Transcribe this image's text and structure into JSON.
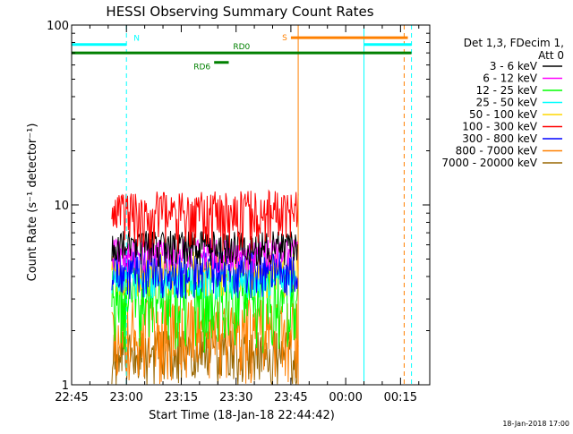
{
  "chart_data": {
    "type": "line",
    "title": "HESSI Observing Summary Count Rates",
    "xlabel": "Start Time (18-Jan-18 22:44:42)",
    "ylabel": "Count Rate (s⁻¹ detector⁻¹)",
    "y_scale": "log",
    "ylim": [
      1,
      100
    ],
    "xlim": [
      "22:45",
      "00:23"
    ],
    "x_ticks": [
      "22:45",
      "23:00",
      "23:15",
      "23:30",
      "23:45",
      "00:00",
      "00:15"
    ],
    "y_ticks": [
      "1",
      "10",
      "100"
    ],
    "footer": "18-Jan-2018 17:00",
    "legend": {
      "header_lines": [
        "Det 1,3, FDecim 1,",
        "Att 0"
      ],
      "placement": "right"
    },
    "flags": [
      {
        "label": "N",
        "color": "#00ffff",
        "y": 78,
        "x_start": "22:45",
        "x_end": "23:00"
      },
      {
        "label": "",
        "color": "#00ffff",
        "y": 78,
        "x_start": "00:05",
        "x_end": "00:18"
      },
      {
        "label": "S",
        "color": "#ff8000",
        "y": 85,
        "x_start": "23:45",
        "x_end": "00:17"
      },
      {
        "label": "RD0",
        "color": "#008000",
        "y": 70,
        "x_start": "22:45",
        "x_end": "00:18"
      },
      {
        "label": "RD6",
        "color": "#008000",
        "y": 62,
        "x_start": "23:24",
        "x_end": "23:28"
      }
    ],
    "vertical_lines": [
      {
        "x": "22:45",
        "color": "#00ffff",
        "style": "solid"
      },
      {
        "x": "23:00",
        "color": "#00ffff",
        "style": "dashed"
      },
      {
        "x": "23:47",
        "color": "#ff8000",
        "style": "solid"
      },
      {
        "x": "00:05",
        "color": "#00ffff",
        "style": "solid"
      },
      {
        "x": "00:16",
        "color": "#ff8000",
        "style": "dashed"
      },
      {
        "x": "00:18",
        "color": "#00ffff",
        "style": "dashed"
      }
    ],
    "data_window": {
      "start": "22:56",
      "end": "23:47"
    },
    "series": [
      {
        "name": "3 - 6 keV",
        "color": "#000000",
        "approx_range": [
          4.5,
          7.2
        ]
      },
      {
        "name": "6 - 12 keV",
        "color": "#ff00ff",
        "approx_range": [
          4.2,
          6.5
        ]
      },
      {
        "name": "12 - 25 keV",
        "color": "#00ff00",
        "approx_range": [
          1.5,
          4.5
        ]
      },
      {
        "name": "25 - 50 keV",
        "color": "#00ffff",
        "approx_range": [
          3.0,
          4.5
        ]
      },
      {
        "name": "50 - 100 keV",
        "color": "#ffd700",
        "approx_range": [
          3.0,
          5.5
        ]
      },
      {
        "name": "100 - 300 keV",
        "color": "#ff0000",
        "approx_range": [
          5.5,
          12.0
        ]
      },
      {
        "name": "300 - 800 keV",
        "color": "#0000ff",
        "approx_range": [
          3.0,
          5.5
        ]
      },
      {
        "name": "800 - 7000 keV",
        "color": "#ff8000",
        "approx_range": [
          1.0,
          3.0
        ]
      },
      {
        "name": "7000 - 20000 keV",
        "color": "#996600",
        "approx_range": [
          1.0,
          2.0
        ]
      }
    ]
  }
}
